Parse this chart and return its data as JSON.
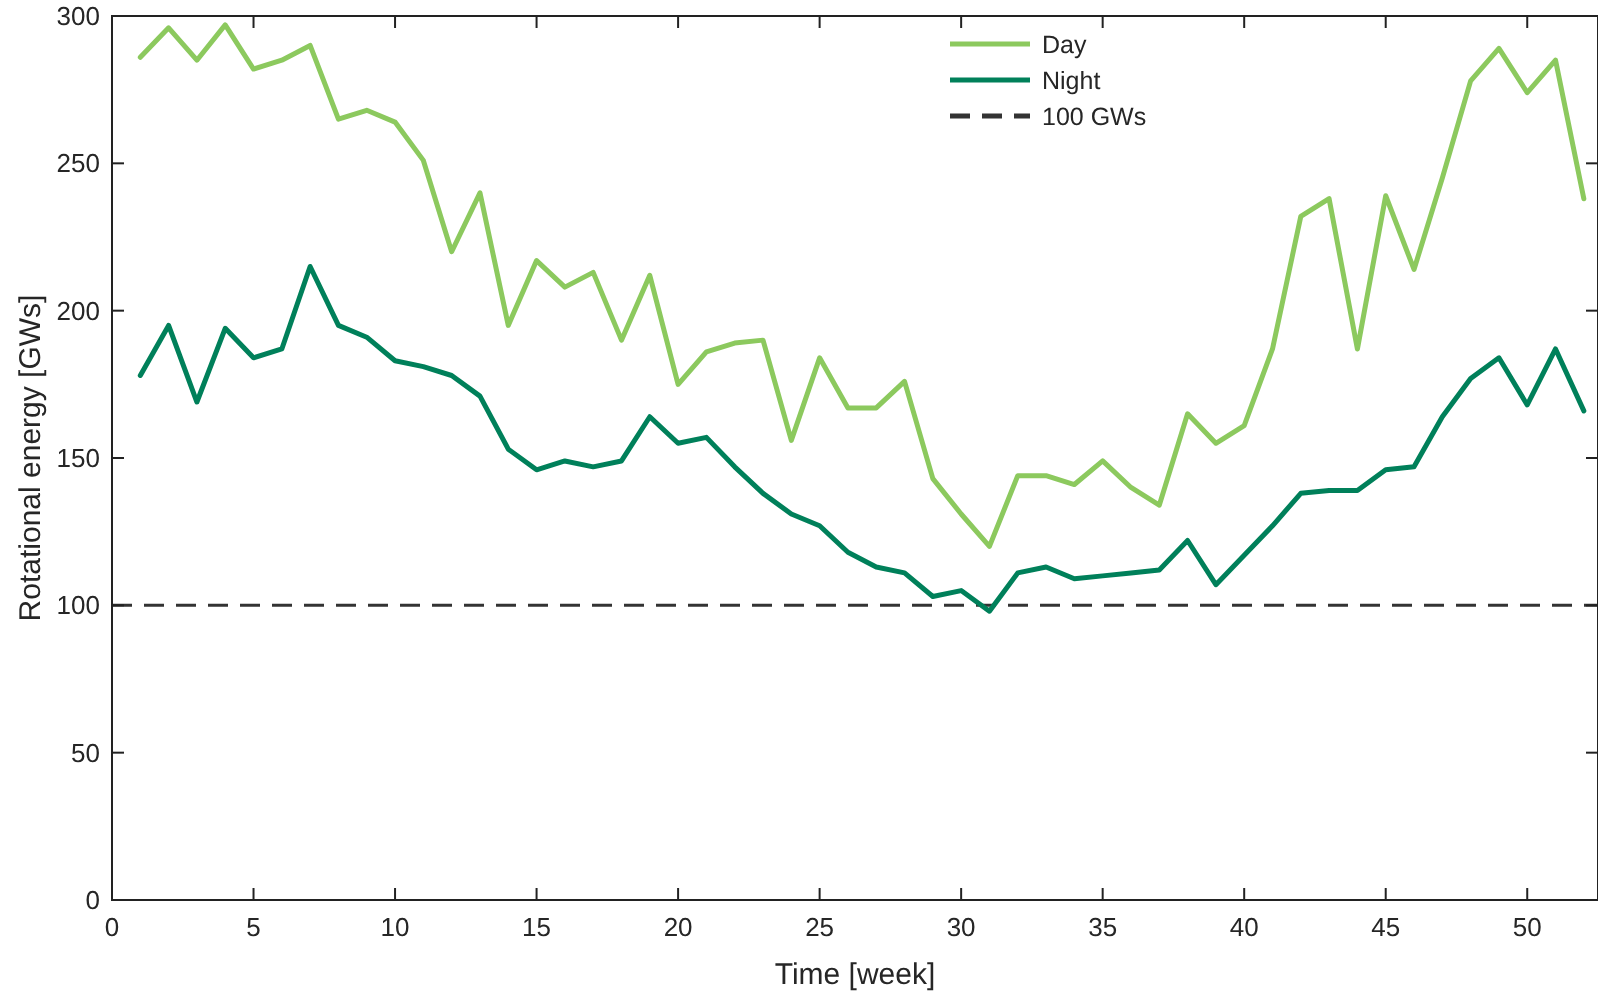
{
  "chart_data": {
    "type": "line",
    "xlabel": "Time [week]",
    "ylabel": "Rotational energy [GWs]",
    "x": [
      1,
      2,
      3,
      4,
      5,
      6,
      7,
      8,
      9,
      10,
      11,
      12,
      13,
      14,
      15,
      16,
      17,
      18,
      19,
      20,
      21,
      22,
      23,
      24,
      25,
      26,
      27,
      28,
      29,
      30,
      31,
      32,
      33,
      34,
      35,
      36,
      37,
      38,
      39,
      40,
      41,
      42,
      43,
      44,
      45,
      46,
      47,
      48,
      49,
      50,
      51,
      52
    ],
    "series": [
      {
        "name": "Day",
        "color": "#8cc95e",
        "values": [
          286,
          296,
          285,
          297,
          282,
          285,
          290,
          265,
          268,
          264,
          251,
          220,
          240,
          195,
          217,
          208,
          213,
          190,
          212,
          175,
          186,
          189,
          190,
          156,
          184,
          167,
          167,
          176,
          143,
          131,
          120,
          144,
          144,
          141,
          149,
          140,
          134,
          165,
          155,
          161,
          187,
          232,
          238,
          187,
          239,
          214,
          245,
          278,
          289,
          274,
          285,
          238
        ]
      },
      {
        "name": "Night",
        "color": "#00805a",
        "values": [
          178,
          195,
          169,
          194,
          184,
          187,
          215,
          195,
          191,
          183,
          181,
          178,
          171,
          153,
          146,
          149,
          147,
          149,
          164,
          155,
          157,
          147,
          138,
          131,
          127,
          118,
          113,
          111,
          103,
          105,
          98,
          111,
          113,
          109,
          110,
          111,
          112,
          122,
          107,
          117,
          127,
          138,
          139,
          139,
          146,
          147,
          164,
          177,
          184,
          168,
          187,
          166
        ]
      }
    ],
    "xlim": [
      0,
      52.5
    ],
    "ylim": [
      0,
      300
    ],
    "xticks": [
      0,
      5,
      10,
      15,
      20,
      25,
      30,
      35,
      40,
      45,
      50
    ],
    "yticks": [
      0,
      50,
      100,
      150,
      200,
      250,
      300
    ],
    "ref_lines": [
      {
        "axis": "y",
        "value": 100,
        "label": "100 GWs",
        "color": "#333333",
        "line_style": "dashed"
      }
    ],
    "legend": "top",
    "grid": false,
    "marker": "none",
    "line_style": "solid"
  }
}
